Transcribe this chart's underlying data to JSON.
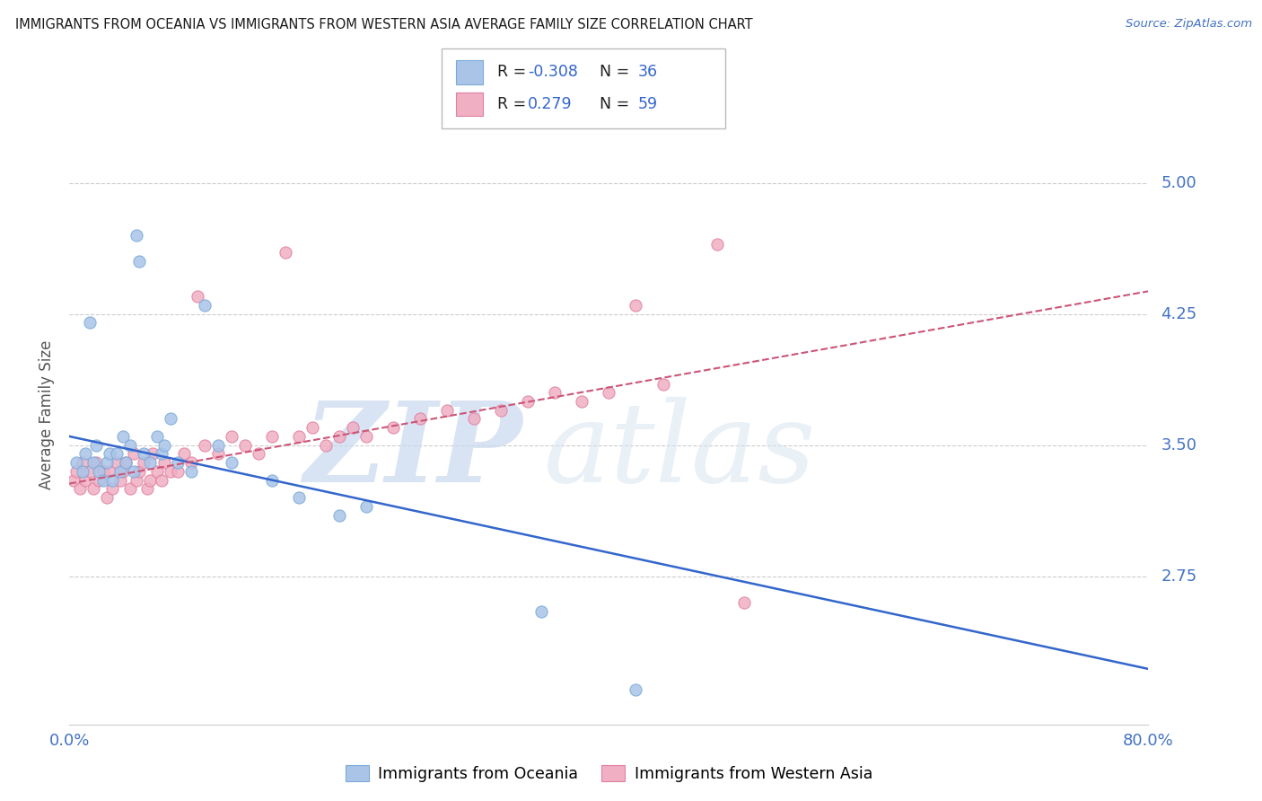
{
  "title": "IMMIGRANTS FROM OCEANIA VS IMMIGRANTS FROM WESTERN ASIA AVERAGE FAMILY SIZE CORRELATION CHART",
  "source": "Source: ZipAtlas.com",
  "ylabel": "Average Family Size",
  "xlim": [
    0.0,
    0.8
  ],
  "ylim": [
    1.9,
    5.45
  ],
  "yticks": [
    2.75,
    3.5,
    4.25,
    5.0
  ],
  "xticks": [
    0.0,
    0.8
  ],
  "xticklabels": [
    "0.0%",
    "80.0%"
  ],
  "title_color": "#1a1a1a",
  "source_color": "#4472c4",
  "ylabel_color": "#555555",
  "tick_color": "#4472c4",
  "watermark_zip": "ZIP",
  "watermark_atlas": "atlas",
  "series1_color": "#aac4e8",
  "series2_color": "#f0afc3",
  "series1_edge": "#7aaad8",
  "series2_edge": "#e080a0",
  "trendline1_color": "#3366cc",
  "trendline2_color": "#cc5577",
  "grid_color": "#cccccc",
  "background_color": "#ffffff",
  "R1": -0.308,
  "N1": 36,
  "R2": 0.279,
  "N2": 59,
  "legend1_label": "Immigrants from Oceania",
  "legend2_label": "Immigrants from Western Asia",
  "oceania_x": [
    0.005,
    0.01,
    0.012,
    0.015,
    0.018,
    0.02,
    0.022,
    0.025,
    0.028,
    0.03,
    0.032,
    0.035,
    0.038,
    0.04,
    0.042,
    0.045,
    0.048,
    0.05,
    0.052,
    0.055,
    0.06,
    0.065,
    0.068,
    0.07,
    0.075,
    0.08,
    0.09,
    0.1,
    0.11,
    0.12,
    0.15,
    0.17,
    0.2,
    0.22,
    0.35,
    0.42
  ],
  "oceania_y": [
    3.4,
    3.35,
    3.45,
    4.2,
    3.4,
    3.5,
    3.35,
    3.3,
    3.4,
    3.45,
    3.3,
    3.45,
    3.35,
    3.55,
    3.4,
    3.5,
    3.35,
    4.7,
    4.55,
    3.45,
    3.4,
    3.55,
    3.45,
    3.5,
    3.65,
    3.4,
    3.35,
    4.3,
    3.5,
    3.4,
    3.3,
    3.2,
    3.1,
    3.15,
    2.55,
    2.1
  ],
  "western_asia_x": [
    0.003,
    0.005,
    0.008,
    0.01,
    0.012,
    0.015,
    0.018,
    0.02,
    0.022,
    0.025,
    0.028,
    0.03,
    0.032,
    0.035,
    0.038,
    0.04,
    0.042,
    0.045,
    0.048,
    0.05,
    0.052,
    0.055,
    0.058,
    0.06,
    0.062,
    0.065,
    0.068,
    0.07,
    0.075,
    0.08,
    0.085,
    0.09,
    0.095,
    0.1,
    0.11,
    0.12,
    0.13,
    0.14,
    0.15,
    0.16,
    0.17,
    0.18,
    0.19,
    0.2,
    0.21,
    0.22,
    0.24,
    0.26,
    0.28,
    0.3,
    0.32,
    0.34,
    0.36,
    0.38,
    0.4,
    0.42,
    0.44,
    0.48,
    0.5
  ],
  "western_asia_y": [
    3.3,
    3.35,
    3.25,
    3.4,
    3.3,
    3.35,
    3.25,
    3.4,
    3.3,
    3.35,
    3.2,
    3.35,
    3.25,
    3.4,
    3.3,
    3.35,
    3.4,
    3.25,
    3.45,
    3.3,
    3.35,
    3.4,
    3.25,
    3.3,
    3.45,
    3.35,
    3.3,
    3.4,
    3.35,
    3.35,
    3.45,
    3.4,
    4.35,
    3.5,
    3.45,
    3.55,
    3.5,
    3.45,
    3.55,
    4.6,
    3.55,
    3.6,
    3.5,
    3.55,
    3.6,
    3.55,
    3.6,
    3.65,
    3.7,
    3.65,
    3.7,
    3.75,
    3.8,
    3.75,
    3.8,
    4.3,
    3.85,
    4.65,
    2.6
  ]
}
